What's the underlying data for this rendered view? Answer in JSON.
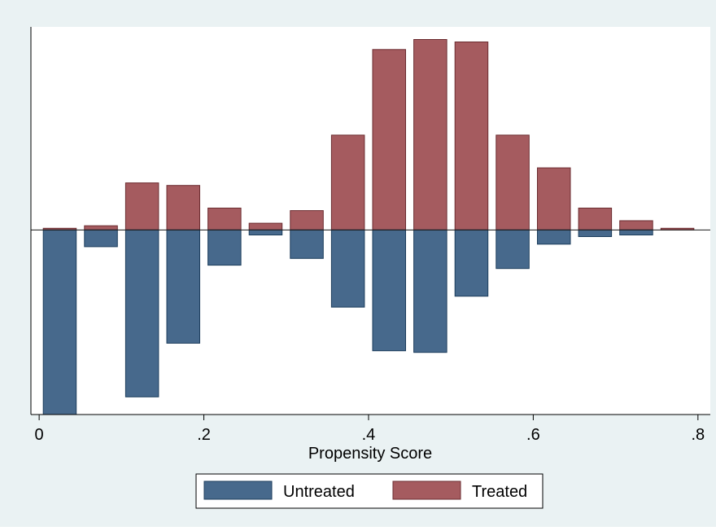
{
  "chart_data": {
    "type": "bar",
    "xlabel": "Propensity Score",
    "ylabel": "",
    "xlim": [
      -0.01,
      0.815
    ],
    "ylim": [
      -2.2,
      2.42
    ],
    "x_ticks": [
      {
        "value": 0,
        "label": "0"
      },
      {
        "value": 0.2,
        "label": ".2"
      },
      {
        "value": 0.4,
        "label": ".4"
      },
      {
        "value": 0.6,
        "label": ".6"
      },
      {
        "value": 0.8,
        "label": ".8"
      }
    ],
    "bin_width": 0.04,
    "bins": [
      0.025,
      0.075,
      0.125,
      0.175,
      0.225,
      0.275,
      0.325,
      0.375,
      0.425,
      0.475,
      0.525,
      0.575,
      0.625,
      0.675,
      0.725,
      0.775
    ],
    "series": [
      {
        "name": "Treated",
        "color": "#a55b5f",
        "values": [
          0.02,
          0.05,
          0.56,
          0.53,
          0.26,
          0.08,
          0.23,
          1.13,
          2.15,
          2.27,
          2.24,
          1.13,
          0.74,
          0.26,
          0.11,
          0.02
        ]
      },
      {
        "name": "Untreated",
        "color": "#47698c",
        "values": [
          -2.2,
          -0.2,
          -1.99,
          -1.35,
          -0.42,
          -0.06,
          -0.34,
          -0.92,
          -1.44,
          -1.46,
          -0.79,
          -0.46,
          -0.17,
          -0.08,
          -0.06,
          0
        ]
      }
    ],
    "legend": {
      "position": "bottom",
      "items": [
        {
          "label": "Untreated",
          "color": "#47698c"
        },
        {
          "label": "Treated",
          "color": "#a55b5f"
        }
      ]
    },
    "zero_line": true,
    "grid": false
  }
}
